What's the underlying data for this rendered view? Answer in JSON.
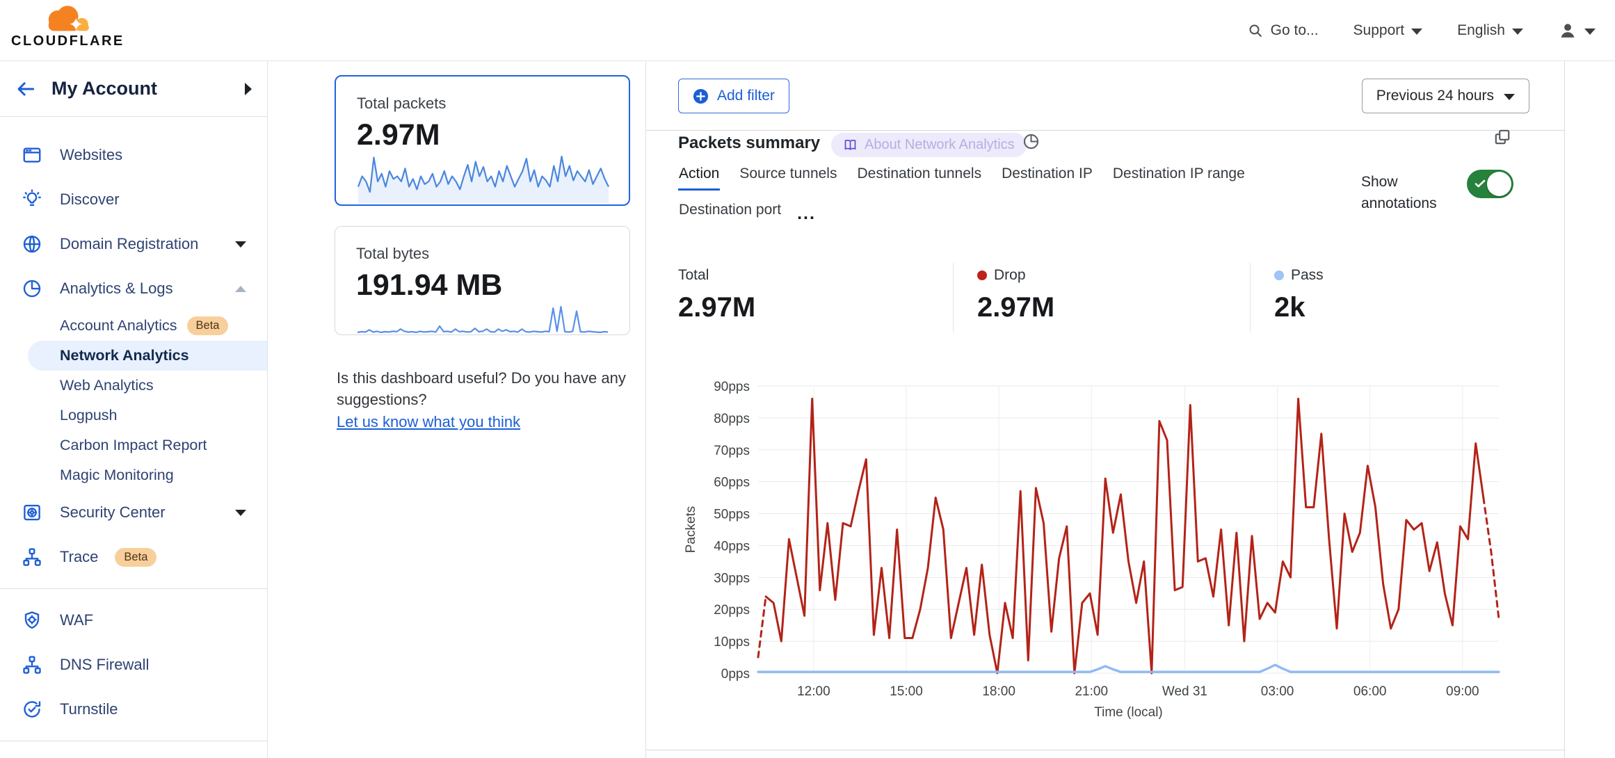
{
  "brand": {
    "name": "CLOUDFLARE"
  },
  "topbar": {
    "go_to": "Go to...",
    "support": "Support",
    "language": "English"
  },
  "sidebar": {
    "account_title": "My Account",
    "sections": [
      {
        "items": [
          {
            "label": "Websites",
            "icon": "browser-icon"
          },
          {
            "label": "Discover",
            "icon": "lightbulb-icon"
          },
          {
            "label": "Domain Registration",
            "icon": "globe-icon",
            "caret": "down"
          },
          {
            "label": "Analytics & Logs",
            "icon": "pie-chart-icon",
            "caret": "up",
            "children": [
              {
                "label": "Account Analytics",
                "badge": "Beta"
              },
              {
                "label": "Network Analytics",
                "selected": true
              },
              {
                "label": "Web Analytics"
              },
              {
                "label": "Logpush"
              },
              {
                "label": "Carbon Impact Report"
              },
              {
                "label": "Magic Monitoring"
              }
            ]
          },
          {
            "label": "Security Center",
            "icon": "safe-icon",
            "caret": "down"
          },
          {
            "label": "Trace",
            "icon": "sitemap-icon",
            "badge": "Beta"
          }
        ]
      },
      {
        "items": [
          {
            "label": "WAF",
            "icon": "shield-gear-icon"
          },
          {
            "label": "DNS Firewall",
            "icon": "sitemap-icon"
          },
          {
            "label": "Turnstile",
            "icon": "refresh-check-icon"
          }
        ]
      },
      {
        "items": [
          {
            "label": "",
            "icon": "rays-icon"
          }
        ]
      }
    ]
  },
  "summary_cards": [
    {
      "label": "Total packets",
      "value": "2.97M",
      "selected": true,
      "spark": [
        3,
        5,
        4,
        2,
        8.6,
        4,
        5.5,
        3,
        6,
        4.5,
        5,
        4,
        6.5,
        3,
        4.5,
        2.5,
        5,
        3.5,
        4,
        5.5,
        3,
        4,
        6,
        3.5,
        5,
        4,
        2.5,
        5,
        7.2,
        4,
        7.8,
        5,
        6.8,
        4,
        5,
        3,
        6,
        4,
        7,
        5,
        3,
        4.5,
        6,
        8.4,
        4,
        6.2,
        3,
        5,
        4.2,
        3,
        7,
        4,
        8.8,
        5,
        7,
        4.2,
        6,
        5,
        4,
        6.2,
        3.5,
        5,
        6.5,
        4.5,
        3
      ]
    },
    {
      "label": "Total bytes",
      "value": "191.94 MB",
      "selected": false,
      "spark": [
        1.3,
        1.5,
        1.4,
        2,
        1.4,
        1.6,
        1.3,
        1.5,
        1.4,
        1.6,
        1.5,
        2.2,
        1.6,
        1.4,
        1.5,
        1.3,
        1.6,
        1.4,
        1.5,
        1.6,
        1.4,
        3,
        1.5,
        1.6,
        1.4,
        2.2,
        1.5,
        1.6,
        1.4,
        1.5,
        2.4,
        1.5,
        1.6,
        2.2,
        1.5,
        1.4,
        2.2,
        1.6,
        2,
        1.5,
        1.6,
        1.4,
        2.2,
        1.5,
        1.4,
        1.6,
        1.5,
        1.4,
        1.6,
        1.5,
        7.8,
        1.6,
        8.2,
        1.5,
        1.4,
        1.6,
        7,
        1.5,
        1.4,
        1.6,
        1.5,
        1.4,
        1.3,
        1.5,
        1.4
      ]
    }
  ],
  "feedback": {
    "question": "Is this dashboard useful? Do you have any suggestions?",
    "link": "Let us know what you think"
  },
  "toolbar": {
    "add_filter": "Add filter",
    "time_range": "Previous 24 hours"
  },
  "panel": {
    "title": "Packets summary",
    "about_badge": "About Network Analytics",
    "tabs_row1": [
      "Action",
      "Source tunnels",
      "Destination tunnels",
      "Destination IP",
      "Destination IP range"
    ],
    "tabs_row2": [
      "Destination port"
    ],
    "active_tab": "Action",
    "more_tabs_label": "...",
    "show_annotations": "Show annotations",
    "annotations_on": true,
    "stats": [
      {
        "label": "Total",
        "value": "2.97M",
        "dot": null
      },
      {
        "label": "Drop",
        "value": "2.97M",
        "dot": "#c0211a"
      },
      {
        "label": "Pass",
        "value": "2k",
        "dot": "#9ec4f8"
      }
    ]
  },
  "chart_data": {
    "type": "line",
    "title": "Packets summary",
    "xlabel": "Time (local)",
    "ylabel": "Packets",
    "y_unit": "pps",
    "ylim": [
      0,
      90
    ],
    "y_tick_step": 10,
    "grid": true,
    "legend_position": "top-stats-row",
    "x_ticks": [
      {
        "label": "12:00",
        "f": 0.075
      },
      {
        "label": "15:00",
        "f": 0.2
      },
      {
        "label": "18:00",
        "f": 0.325
      },
      {
        "label": "21:00",
        "f": 0.45
      },
      {
        "label": "Wed 31",
        "f": 0.576
      },
      {
        "label": "03:00",
        "f": 0.701
      },
      {
        "label": "06:00",
        "f": 0.826
      },
      {
        "label": "09:00",
        "f": 0.951
      }
    ],
    "series": [
      {
        "name": "Drop",
        "color": "#b32318",
        "dashed_head": 1,
        "dashed_tail": 2,
        "values": [
          5,
          24,
          22,
          10,
          42,
          30,
          18,
          86,
          26,
          47,
          23,
          47,
          46,
          57,
          67,
          12,
          33,
          11,
          45,
          11,
          11,
          20,
          33,
          55,
          45,
          11,
          22,
          33,
          12,
          34,
          12,
          0,
          22,
          11,
          57,
          4,
          58,
          47,
          13,
          36,
          46,
          0,
          22,
          25,
          12,
          61,
          44,
          56,
          35,
          22,
          35,
          0,
          79,
          73,
          26,
          27,
          84,
          35,
          36,
          24,
          45,
          15,
          44,
          10,
          43,
          17,
          22,
          19,
          35,
          30,
          86,
          52,
          52,
          75,
          42,
          14,
          50,
          38,
          44,
          65,
          52,
          28,
          14,
          20,
          48,
          45,
          47,
          32,
          41,
          25,
          15,
          46,
          42,
          72,
          55,
          38,
          17
        ]
      },
      {
        "name": "Pass",
        "color": "#8fbaf3",
        "values": [
          0.4,
          0.4,
          0.4,
          0.4,
          0.4,
          0.4,
          0.4,
          0.4,
          0.4,
          0.4,
          0.4,
          0.4,
          0.4,
          0.4,
          0.4,
          0.4,
          0.4,
          0.4,
          0.4,
          0.4,
          0.4,
          0.4,
          0.4,
          0.4,
          0.4,
          0.4,
          0.4,
          0.4,
          0.4,
          0.4,
          0.4,
          0.4,
          0.4,
          0.4,
          0.4,
          0.4,
          0.4,
          0.4,
          0.4,
          0.4,
          0.4,
          0.4,
          0.4,
          0.4,
          1.2,
          2.2,
          1.2,
          0.4,
          0.4,
          0.4,
          0.4,
          0.4,
          0.4,
          0.4,
          0.4,
          0.4,
          0.4,
          0.4,
          0.4,
          0.4,
          0.4,
          0.4,
          0.4,
          0.4,
          0.4,
          0.4,
          1.4,
          2.6,
          1.4,
          0.4,
          0.4,
          0.4,
          0.4,
          0.4,
          0.4,
          0.4,
          0.4,
          0.4,
          0.4,
          0.4,
          0.4,
          0.4,
          0.4,
          0.4,
          0.4,
          0.4,
          0.4,
          0.4,
          0.4,
          0.4,
          0.4,
          0.4,
          0.4,
          0.4,
          0.4,
          0.4,
          0.4
        ]
      }
    ]
  }
}
